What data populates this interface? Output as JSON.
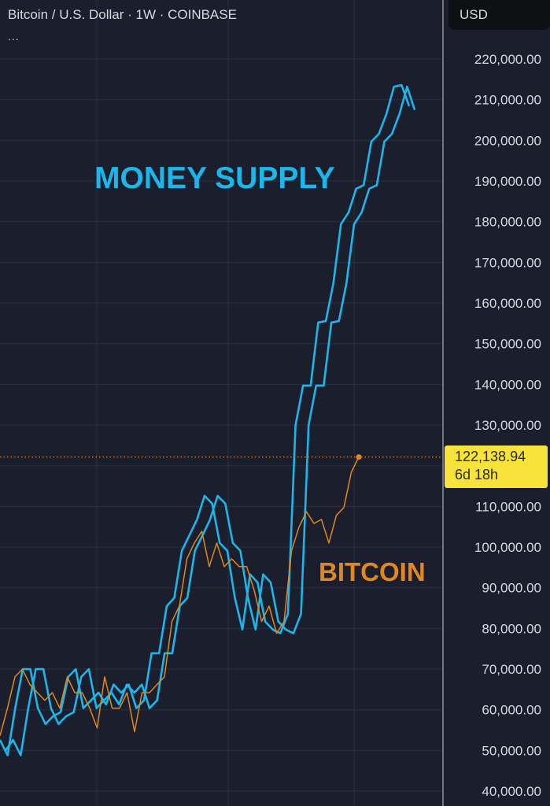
{
  "header": {
    "title": "Bitcoin / U.S. Dollar · 1W · COINBASE",
    "more": "...",
    "currency": "USD"
  },
  "colors": {
    "background": "#1b1f2d",
    "money_supply": "#1db6ea",
    "bitcoin": "#e0871f",
    "price_label": "#f7e33a"
  },
  "price_label": {
    "value": "122,138.94",
    "countdown": "6d 18h"
  },
  "annotations": {
    "money_supply": "MONEY SUPPLY",
    "bitcoin": "BITCOIN"
  },
  "chart_data": {
    "type": "line",
    "interval": "1W",
    "ylim": [
      40000,
      220000
    ],
    "yticks": [
      "220,000.00",
      "210,000.00",
      "200,000.00",
      "190,000.00",
      "180,000.00",
      "170,000.00",
      "160,000.00",
      "150,000.00",
      "140,000.00",
      "130,000.00",
      "110,000.00",
      "100,000.00",
      "90,000.00",
      "80,000.00",
      "70,000.00",
      "60,000.00",
      "50,000.00",
      "40,000.00"
    ],
    "ytick_values": [
      220000,
      210000,
      200000,
      190000,
      180000,
      170000,
      160000,
      150000,
      140000,
      130000,
      110000,
      100000,
      90000,
      80000,
      70000,
      60000,
      50000,
      40000
    ],
    "grid": true,
    "last_price": 122138.94,
    "series": [
      {
        "name": "MONEY SUPPLY",
        "color": "#1db6ea",
        "values": [
          52600,
          48800,
          60400,
          70000,
          70000,
          60400,
          56500,
          58400,
          59400,
          68100,
          70000,
          60400,
          62300,
          64200,
          61300,
          66200,
          64200,
          66200,
          60400,
          62300,
          73900,
          73900,
          85500,
          87500,
          99100,
          102900,
          106800,
          112600,
          110700,
          101000,
          99100,
          87500,
          79700,
          93300,
          91300,
          81700,
          79700,
          78800,
          83600,
          130000,
          139700,
          139700,
          155200,
          155600,
          164900,
          179400,
          182300,
          188100,
          189000,
          199700,
          201600,
          206500,
          213200,
          213600,
          208400
        ]
      },
      {
        "name": "MONEY SUPPLY",
        "color": "#1db6ea",
        "values": [
          50000,
          52600,
          48800,
          60400,
          70000,
          70000,
          60400,
          56500,
          58400,
          59400,
          68100,
          70000,
          60400,
          62300,
          64200,
          61300,
          66200,
          64200,
          66200,
          60400,
          62300,
          73900,
          73900,
          85500,
          87500,
          99100,
          102900,
          106800,
          112600,
          110700,
          101000,
          99100,
          87500,
          79700,
          93300,
          91300,
          81700,
          79700,
          78800,
          83600,
          130000,
          139700,
          139700,
          155200,
          155600,
          164900,
          179400,
          182300,
          188100,
          189000,
          199700,
          201600,
          206500,
          213200,
          207500
        ]
      },
      {
        "name": "BITCOIN",
        "color": "#e0871f",
        "values": [
          53600,
          60400,
          68100,
          70000,
          66200,
          64200,
          62300,
          64200,
          60400,
          68100,
          64200,
          64200,
          60400,
          55500,
          68100,
          60400,
          60400,
          64200,
          54600,
          64200,
          64200,
          66200,
          68100,
          81700,
          85500,
          97100,
          101000,
          103900,
          95200,
          101000,
          95200,
          97100,
          95200,
          95200,
          89400,
          81700,
          85500,
          78800,
          81700,
          99100,
          104900,
          108700,
          105800,
          106800,
          101000,
          107800,
          109700,
          118400,
          122139
        ]
      }
    ]
  }
}
